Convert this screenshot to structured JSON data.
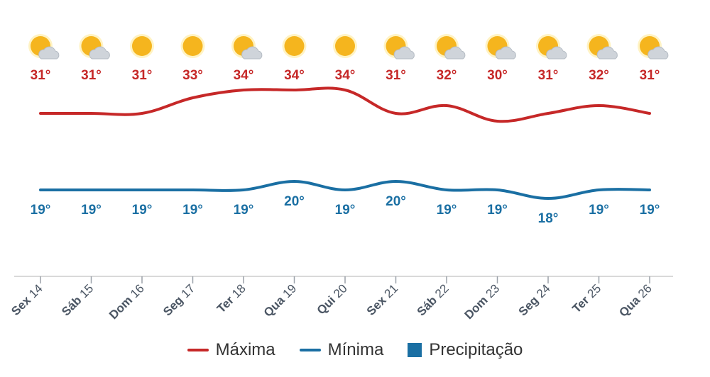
{
  "chart_data": {
    "type": "line",
    "categories": [
      "Sex 14",
      "Sáb 15",
      "Dom 16",
      "Seg 17",
      "Ter 18",
      "Qua 19",
      "Qui 20",
      "Sex 21",
      "Sáb 22",
      "Dom 23",
      "Seg 24",
      "Ter 25",
      "Qua 26"
    ],
    "days": [
      {
        "weekday": "Sex",
        "day": "14"
      },
      {
        "weekday": "Sáb",
        "day": "15"
      },
      {
        "weekday": "Dom",
        "day": "16"
      },
      {
        "weekday": "Seg",
        "day": "17"
      },
      {
        "weekday": "Ter",
        "day": "18"
      },
      {
        "weekday": "Qua",
        "day": "19"
      },
      {
        "weekday": "Qui",
        "day": "20"
      },
      {
        "weekday": "Sex",
        "day": "21"
      },
      {
        "weekday": "Sáb",
        "day": "22"
      },
      {
        "weekday": "Dom",
        "day": "23"
      },
      {
        "weekday": "Seg",
        "day": "24"
      },
      {
        "weekday": "Ter",
        "day": "25"
      },
      {
        "weekday": "Qua",
        "day": "26"
      }
    ],
    "weather_icons": [
      "partly-cloudy-icon",
      "partly-cloudy-icon",
      "sun-icon",
      "sun-icon",
      "partly-cloudy-icon",
      "sun-icon",
      "sun-icon",
      "partly-cloudy-icon",
      "partly-cloudy-icon",
      "partly-cloudy-icon",
      "partly-cloudy-icon",
      "partly-cloudy-icon",
      "partly-cloudy-icon"
    ],
    "series": [
      {
        "name": "Máxima",
        "color": "#c62828",
        "values": [
          31,
          31,
          31,
          33,
          34,
          34,
          34,
          31,
          32,
          30,
          31,
          32,
          31
        ],
        "labels": [
          "31°",
          "31°",
          "31°",
          "33°",
          "34°",
          "34°",
          "34°",
          "31°",
          "32°",
          "30°",
          "31°",
          "32°",
          "31°"
        ]
      },
      {
        "name": "Mínima",
        "color": "#1a6fa3",
        "values": [
          19,
          19,
          19,
          19,
          19,
          20,
          19,
          20,
          19,
          19,
          18,
          19,
          19
        ],
        "labels": [
          "19°",
          "19°",
          "19°",
          "19°",
          "19°",
          "20°",
          "19°",
          "20°",
          "19°",
          "19°",
          "18°",
          "19°",
          "19°"
        ]
      }
    ],
    "legend": [
      {
        "label": "Máxima",
        "color": "#c62828",
        "kind": "line"
      },
      {
        "label": "Mínima",
        "color": "#1a6fa3",
        "kind": "line"
      },
      {
        "label": "Precipitação",
        "color": "#1a6fa3",
        "kind": "box"
      }
    ],
    "legend_position": "bottom",
    "grid": false
  }
}
